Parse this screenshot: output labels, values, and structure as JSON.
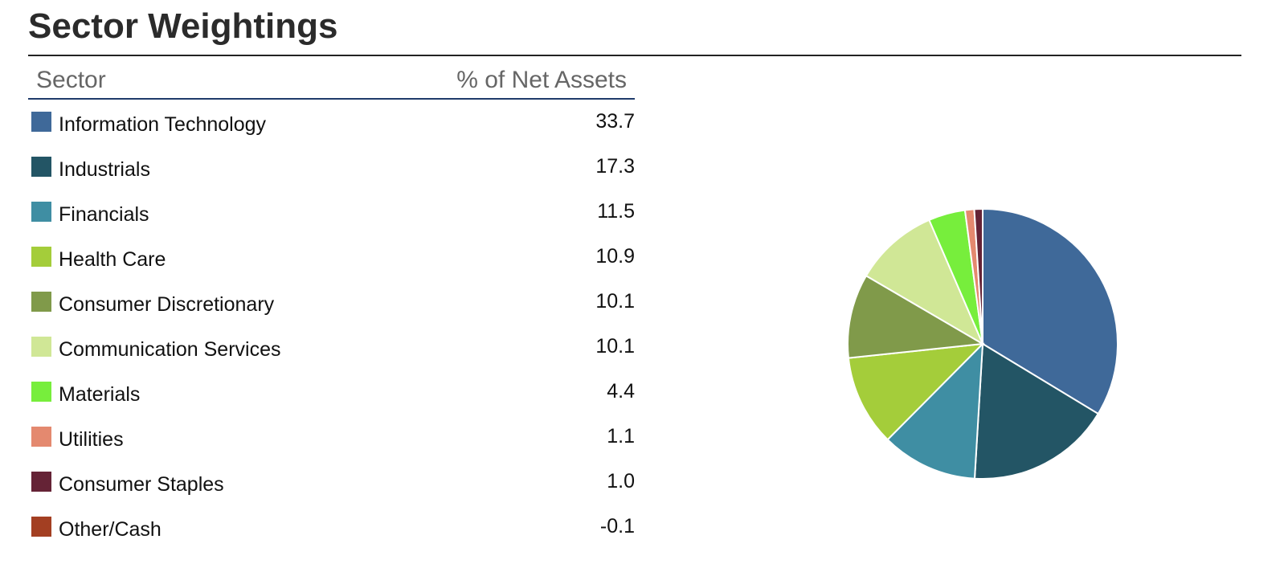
{
  "page": {
    "title": "Sector Weightings"
  },
  "table": {
    "col_sector": "Sector",
    "col_pct": "% of Net Assets"
  },
  "chart_data": {
    "type": "pie",
    "title": "Sector Weightings",
    "categories": [
      "Information Technology",
      "Industrials",
      "Financials",
      "Health Care",
      "Consumer Discretionary",
      "Communication Services",
      "Materials",
      "Utilities",
      "Consumer Staples",
      "Other/Cash"
    ],
    "value_labels": [
      "33.7",
      "17.3",
      "11.5",
      "10.9",
      "10.1",
      "10.1",
      "4.4",
      "1.1",
      "1.0",
      "-0.1"
    ],
    "values": [
      33.7,
      17.3,
      11.5,
      10.9,
      10.1,
      10.1,
      4.4,
      1.1,
      1.0,
      -0.1
    ],
    "colors": [
      "#3f6999",
      "#235565",
      "#3f8ea3",
      "#a4cd3a",
      "#809a4a",
      "#d0e796",
      "#77ee3c",
      "#e4896f",
      "#652336",
      "#a33f22"
    ]
  }
}
